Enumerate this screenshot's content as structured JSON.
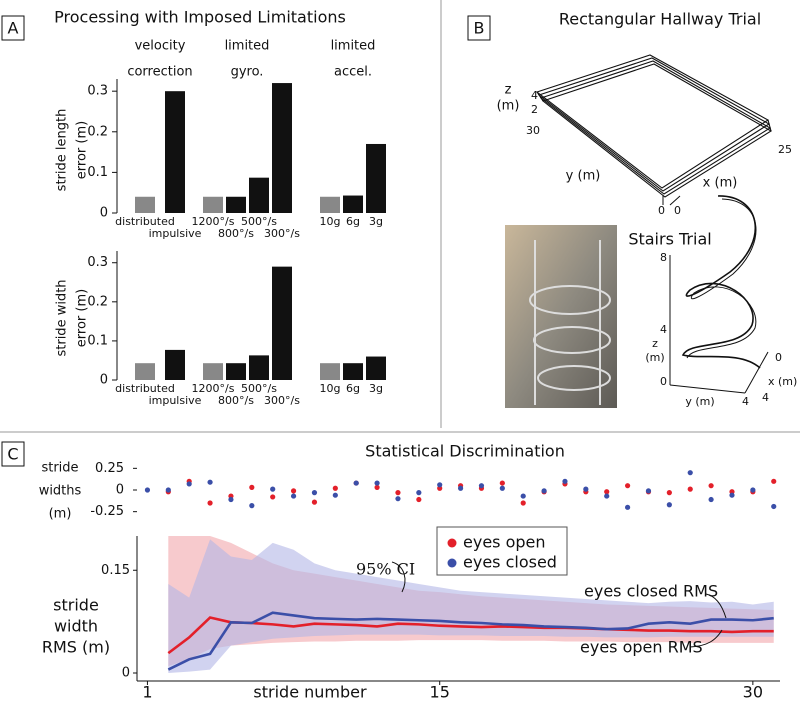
{
  "panels": [
    "A",
    "B",
    "C"
  ],
  "chart_data": [
    {
      "type": "bar",
      "title": "Processing with Imposed Limitations",
      "group_labels": [
        [
          "velocity",
          "correction"
        ],
        [
          "limited",
          "gyro."
        ],
        [
          "limited",
          "accel."
        ]
      ],
      "ylabel": [
        "stride length",
        "error (m)"
      ],
      "categories": [
        "distributed",
        "impulsive",
        "1200°/s",
        "800°/s",
        "500°/s",
        "300°/s",
        "10g",
        "6g",
        "3g"
      ],
      "values": [
        0.04,
        0.3,
        0.04,
        0.04,
        0.087,
        0.32,
        0.04,
        0.043,
        0.17
      ],
      "colors": [
        "#888888",
        "#111111",
        "#888888",
        "#111111",
        "#111111",
        "#111111",
        "#888888",
        "#111111",
        "#111111"
      ],
      "ylim": [
        0,
        0.33
      ],
      "yticks": [
        0,
        0.1,
        0.2,
        0.3
      ]
    },
    {
      "type": "bar",
      "ylabel": [
        "stride width",
        "error (m)"
      ],
      "categories": [
        "distributed",
        "impulsive",
        "1200°/s",
        "800°/s",
        "500°/s",
        "300°/s",
        "10g",
        "6g",
        "3g"
      ],
      "values": [
        0.043,
        0.077,
        0.043,
        0.043,
        0.063,
        0.29,
        0.043,
        0.043,
        0.06
      ],
      "colors": [
        "#888888",
        "#111111",
        "#888888",
        "#111111",
        "#111111",
        "#111111",
        "#888888",
        "#111111",
        "#111111"
      ],
      "ylim": [
        0,
        0.33
      ],
      "yticks": [
        0,
        0.1,
        0.2,
        0.3
      ]
    },
    {
      "type": "scatter",
      "title": "Statistical Discrimination",
      "ylabel": [
        "stride",
        "widths",
        "(m)"
      ],
      "series": [
        {
          "color": "#e3202a",
          "x": [
            2,
            3,
            4,
            5,
            6,
            7,
            8,
            9,
            10,
            11,
            12,
            13,
            14,
            15,
            16,
            17,
            18,
            19,
            20,
            21,
            22,
            23,
            24,
            25,
            26,
            27,
            28,
            29,
            30,
            31
          ],
          "values": [
            -0.02,
            0.1,
            -0.15,
            -0.07,
            0.03,
            -0.08,
            -0.01,
            -0.14,
            0.02,
            0.08,
            0.03,
            -0.03,
            -0.11,
            0.02,
            0.05,
            0.02,
            0.08,
            -0.15,
            -0.02,
            0.07,
            -0.02,
            -0.02,
            0.05,
            -0.02,
            -0.03,
            0.01,
            0.05,
            -0.02,
            -0.02,
            0.1
          ]
        },
        {
          "color": "#3b4fa8",
          "x": [
            1,
            2,
            3,
            4,
            5,
            6,
            7,
            8,
            9,
            10,
            11,
            12,
            13,
            14,
            15,
            16,
            17,
            18,
            19,
            20,
            21,
            22,
            23,
            24,
            25,
            26,
            27,
            28,
            29,
            30,
            31
          ],
          "values": [
            0,
            0,
            0.07,
            0.09,
            -0.11,
            -0.18,
            0.01,
            -0.07,
            -0.03,
            -0.06,
            0.08,
            0.08,
            -0.1,
            -0.03,
            0.06,
            0.02,
            0.05,
            0.02,
            -0.07,
            -0.01,
            0.1,
            0.01,
            -0.07,
            -0.2,
            -0.01,
            -0.17,
            0.2,
            -0.11,
            -0.06,
            0,
            -0.19
          ]
        }
      ],
      "xlim": [
        0.5,
        31.3
      ],
      "ylim": [
        -0.3,
        0.3
      ],
      "yticks": [
        -0.25,
        0,
        0.25
      ]
    },
    {
      "type": "line",
      "ylabel": [
        "stride",
        "width",
        "RMS (m)"
      ],
      "xlabel": "stride number",
      "series": [
        {
          "name": "eyes open",
          "color": "#e3202a",
          "band_color": "#f2a7ab",
          "x": [
            2,
            3,
            4,
            5,
            6,
            7,
            8,
            9,
            10,
            11,
            12,
            13,
            14,
            15,
            16,
            17,
            18,
            19,
            20,
            21,
            22,
            23,
            24,
            25,
            26,
            27,
            28,
            29,
            30,
            31
          ],
          "values": [
            0.029,
            0.052,
            0.081,
            0.074,
            0.073,
            0.071,
            0.068,
            0.072,
            0.071,
            0.07,
            0.068,
            0.072,
            0.071,
            0.069,
            0.068,
            0.067,
            0.068,
            0.067,
            0.066,
            0.066,
            0.065,
            0.064,
            0.063,
            0.062,
            0.062,
            0.061,
            0.061,
            0.06,
            0.061,
            0.061
          ],
          "upper": [
            0.2,
            0.2,
            0.2,
            0.19,
            0.175,
            0.16,
            0.15,
            0.145,
            0.14,
            0.135,
            0.13,
            0.125,
            0.12,
            0.118,
            0.115,
            0.112,
            0.11,
            0.108,
            0.106,
            0.104,
            0.102,
            0.1,
            0.099,
            0.098,
            0.097,
            0.096,
            0.095,
            0.094,
            0.093,
            0.092
          ],
          "lower": [
            0.01,
            0.02,
            0.035,
            0.04,
            0.042,
            0.044,
            0.045,
            0.046,
            0.046,
            0.047,
            0.047,
            0.047,
            0.048,
            0.048,
            0.048,
            0.048,
            0.047,
            0.047,
            0.047,
            0.046,
            0.046,
            0.046,
            0.045,
            0.045,
            0.045,
            0.044,
            0.044,
            0.044,
            0.044,
            0.044
          ]
        },
        {
          "name": "eyes closed",
          "color": "#3b4fa8",
          "band_color": "#b3b6e6",
          "x": [
            2,
            3,
            4,
            5,
            6,
            7,
            8,
            9,
            10,
            11,
            12,
            13,
            14,
            15,
            16,
            17,
            18,
            19,
            20,
            21,
            22,
            23,
            24,
            25,
            26,
            27,
            28,
            29,
            30,
            31
          ],
          "values": [
            0.005,
            0.02,
            0.028,
            0.074,
            0.073,
            0.088,
            0.084,
            0.08,
            0.079,
            0.078,
            0.079,
            0.078,
            0.077,
            0.076,
            0.074,
            0.073,
            0.071,
            0.07,
            0.068,
            0.067,
            0.066,
            0.064,
            0.065,
            0.072,
            0.074,
            0.072,
            0.078,
            0.078,
            0.077,
            0.08
          ],
          "upper": [
            0.13,
            0.11,
            0.195,
            0.17,
            0.165,
            0.19,
            0.18,
            0.16,
            0.15,
            0.145,
            0.14,
            0.135,
            0.13,
            0.125,
            0.12,
            0.118,
            0.116,
            0.114,
            0.112,
            0.11,
            0.108,
            0.106,
            0.104,
            0.102,
            0.104,
            0.105,
            0.103,
            0.104,
            0.1,
            0.104
          ],
          "lower": [
            0,
            0.002,
            0.005,
            0.04,
            0.045,
            0.05,
            0.052,
            0.054,
            0.055,
            0.056,
            0.056,
            0.056,
            0.056,
            0.055,
            0.055,
            0.055,
            0.054,
            0.054,
            0.054,
            0.053,
            0.053,
            0.052,
            0.052,
            0.052,
            0.053,
            0.053,
            0.053,
            0.053,
            0.053,
            0.053
          ]
        }
      ],
      "xlim": [
        0.5,
        31.3
      ],
      "xticks": [
        1,
        15,
        30
      ],
      "ylim": [
        0,
        0.2
      ],
      "yticks": [
        0,
        0.15
      ],
      "annotations": [
        "95% CI",
        "eyes closed RMS",
        "eyes open RMS"
      ],
      "legend": "top-center"
    }
  ],
  "hallway": {
    "title": "Rectangular Hallway Trial",
    "z_label": [
      "z",
      "(m)"
    ],
    "z_ticks": [
      4,
      2
    ],
    "y_tick": 30,
    "y_label": "y (m)",
    "x_label": "x (m)",
    "x_tick": 25,
    "origin": [
      0,
      0
    ]
  },
  "stairs": {
    "title": "Stairs Trial",
    "z_ticks": [
      8,
      4,
      0
    ],
    "z_label": [
      "z",
      "(m)"
    ],
    "y_label": "y (m)",
    "y_tick": 4,
    "x_label": "x (m)",
    "x_ticks": [
      0,
      4
    ]
  }
}
